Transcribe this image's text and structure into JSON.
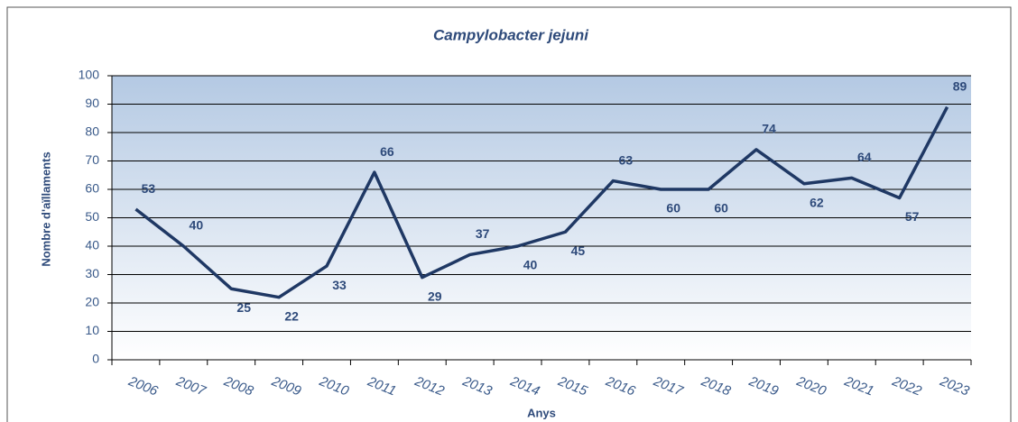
{
  "chart_data": {
    "type": "line",
    "title": "Campylobacter jejuni",
    "x_label": "Anys",
    "y_label": "Nombre d'aïllaments",
    "categories": [
      "2006",
      "2007",
      "2008",
      "2009",
      "2010",
      "2011",
      "2012",
      "2013",
      "2014",
      "2015",
      "2016",
      "2017",
      "2018",
      "2019",
      "2020",
      "2021",
      "2022",
      "2023"
    ],
    "series": [
      {
        "name": "Campylobacter jejuni",
        "color": "#1f3864",
        "values": [
          53,
          40,
          25,
          22,
          33,
          66,
          29,
          37,
          40,
          45,
          63,
          60,
          60,
          74,
          62,
          64,
          57,
          89
        ]
      }
    ],
    "ylim": [
      0,
      100
    ],
    "yticks": [
      0,
      10,
      20,
      30,
      40,
      50,
      60,
      70,
      80,
      90,
      100
    ],
    "grid": true
  }
}
